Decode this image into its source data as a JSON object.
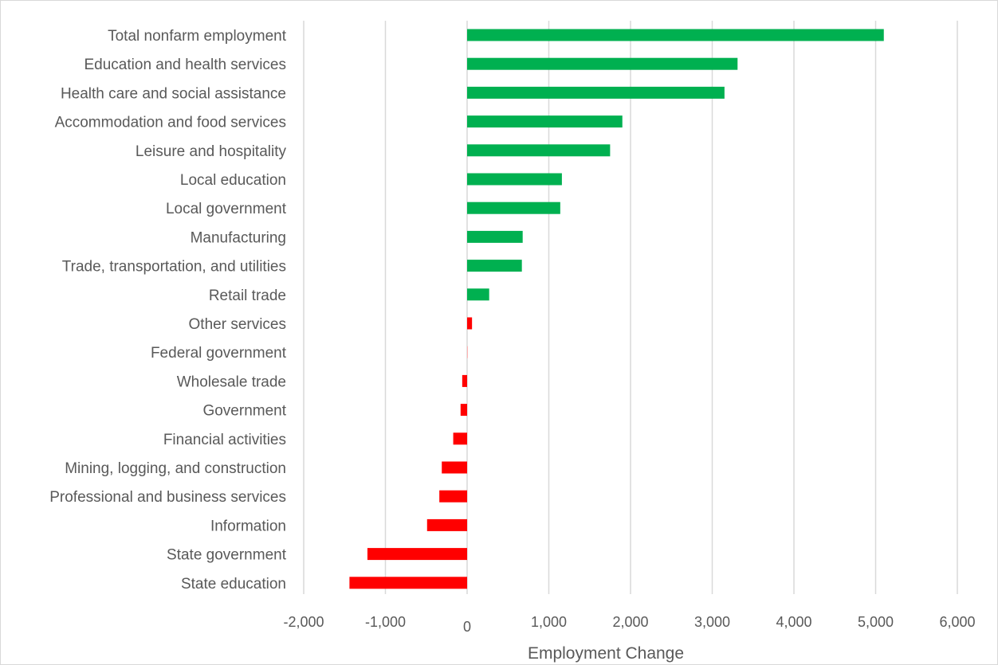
{
  "chart_data": {
    "type": "bar",
    "orientation": "horizontal",
    "title": "",
    "xlabel": "Employment Change",
    "ylabel": "",
    "xlim": [
      -2000,
      6000
    ],
    "x_ticks": [
      -2000,
      -1000,
      0,
      1000,
      2000,
      3000,
      4000,
      5000,
      6000
    ],
    "x_tick_labels": [
      "-2,000",
      "-1,000",
      "0",
      "1,000",
      "2,000",
      "3,000",
      "4,000",
      "5,000",
      "6,000"
    ],
    "grid": true,
    "legend": "none",
    "categories": [
      "Total nonfarm employment",
      "Education and health services",
      "Health care and social assistance",
      "Accommodation and food services",
      "Leisure and hospitality",
      "Local education",
      "Local government",
      "Manufacturing",
      "Trade, transportation, and utilities",
      "Retail trade",
      "Other services",
      "Federal government",
      "Wholesale trade",
      "Government",
      "Financial activities",
      "Mining, logging, and construction",
      "Professional and business services",
      "Information",
      "State government",
      "State education"
    ],
    "values": [
      5100,
      3310,
      3150,
      1900,
      1750,
      1160,
      1140,
      680,
      670,
      270,
      60,
      10,
      -60,
      -80,
      -170,
      -310,
      -340,
      -490,
      -1220,
      -1440
    ],
    "bar_colors": [
      "#00b050",
      "#00b050",
      "#00b050",
      "#00b050",
      "#00b050",
      "#00b050",
      "#00b050",
      "#00b050",
      "#00b050",
      "#00b050",
      "#ff0000",
      "#ffb3b3",
      "#ff0000",
      "#ff0000",
      "#ff0000",
      "#ff0000",
      "#ff0000",
      "#ff0000",
      "#ff0000",
      "#ff0000"
    ]
  },
  "colors": {
    "positive": "#00b050",
    "negative": "#ff0000",
    "gridline": "#d9d9d9",
    "text": "#595959"
  }
}
